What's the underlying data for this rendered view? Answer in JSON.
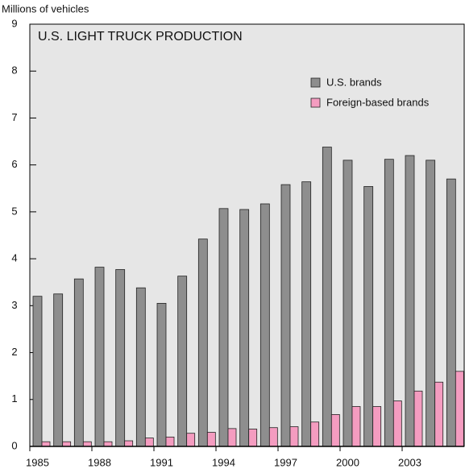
{
  "chart_data": {
    "type": "bar",
    "title": "U.S. LIGHT TRUCK PRODUCTION",
    "y_label": "Millions of vehicles",
    "categories": [
      "1985",
      null,
      null,
      "1988",
      null,
      null,
      "1991",
      null,
      null,
      "1994",
      null,
      null,
      "1997",
      null,
      null,
      "2000",
      null,
      null,
      "2003",
      null,
      null
    ],
    "series": [
      {
        "name": "U.S. brands",
        "color": "#8e8e8e",
        "values": [
          3.2,
          3.25,
          3.57,
          3.82,
          3.77,
          3.38,
          3.05,
          3.63,
          4.42,
          5.07,
          5.05,
          5.17,
          5.58,
          5.64,
          6.38,
          6.1,
          5.54,
          6.12,
          6.2,
          6.1,
          5.7
        ]
      },
      {
        "name": "Foreign-based brands",
        "color": "#f49cc0",
        "values": [
          0.1,
          0.1,
          0.1,
          0.1,
          0.12,
          0.18,
          0.2,
          0.28,
          0.3,
          0.38,
          0.37,
          0.4,
          0.42,
          0.52,
          0.68,
          0.85,
          0.85,
          0.97,
          1.18,
          1.37,
          1.6
        ]
      }
    ],
    "ylim": [
      0,
      9
    ],
    "yticks": [
      0,
      1,
      2,
      3,
      4,
      5,
      6,
      7,
      8,
      9
    ],
    "legend_position": "upper right"
  }
}
